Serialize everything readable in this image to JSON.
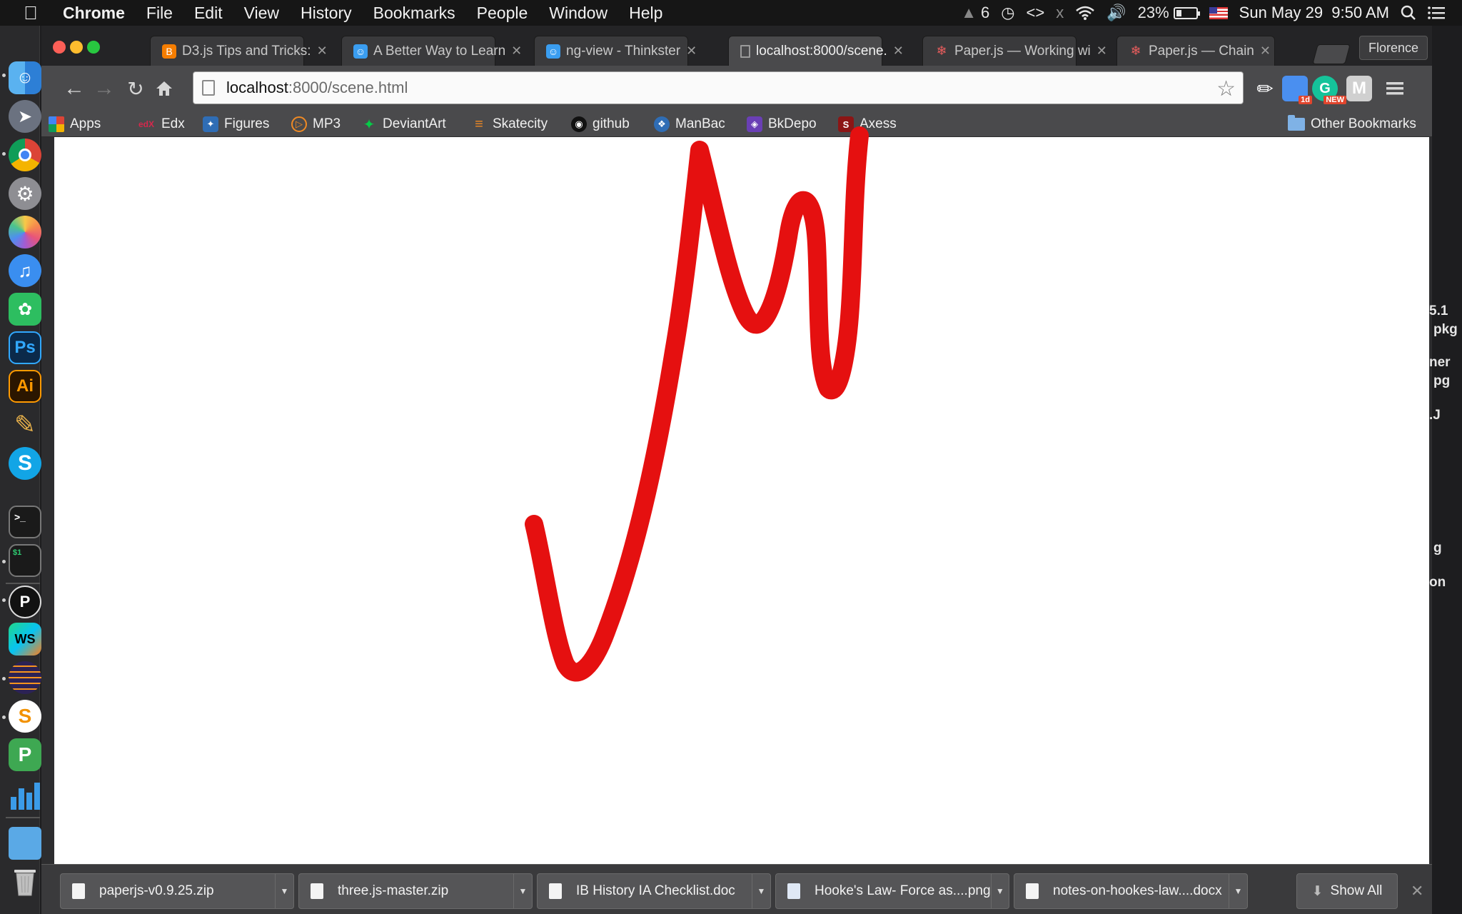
{
  "menubar": {
    "app_name": "Chrome",
    "items": [
      "File",
      "Edit",
      "View",
      "History",
      "Bookmarks",
      "People",
      "Window",
      "Help"
    ],
    "status": {
      "notification_count": "6",
      "battery_percent": "23%",
      "date_time": "Sun May 29  9:50 AM"
    }
  },
  "dock": {
    "icons": [
      "finder-icon",
      "launchpad-icon",
      "chrome-icon",
      "system-preferences-icon",
      "photos-icon",
      "itunes-icon",
      "evernote-icon",
      "photoshop-icon",
      "illustrator-icon",
      "pencil-app-icon",
      "skype-icon",
      "terminal-icon",
      "console-icon",
      "pycharm-icon",
      "webstorm-icon",
      "eclipse-icon",
      "sublime-text-icon",
      "pages-icon",
      "numbers-icon",
      "applications-folder-icon",
      "trash-icon"
    ],
    "labels": {
      "photoshop": "Ps",
      "illustrator": "Ai",
      "skype": "S",
      "webstorm": "WS",
      "sublime": "S",
      "pages": "P"
    }
  },
  "browser": {
    "tabs": [
      {
        "title": "D3.js Tips and Tricks:",
        "icon": "blogger-icon",
        "active": false
      },
      {
        "title": "A Better Way to Learn",
        "icon": "thinkster-icon",
        "active": false
      },
      {
        "title": "ng-view - Thinkster",
        "icon": "thinkster-icon",
        "active": false
      },
      {
        "title": "localhost:8000/scene.",
        "icon": "page-icon",
        "active": true
      },
      {
        "title": "Paper.js — Working wi",
        "icon": "paperjs-icon",
        "active": false
      },
      {
        "title": "Paper.js — Chain",
        "icon": "paperjs-icon",
        "active": false
      }
    ],
    "profile_name": "Florence",
    "address": {
      "host": "localhost",
      "path": ":8000/scene.html"
    },
    "extensions": [
      {
        "icon": "eyedropper-extension-icon",
        "badge": ""
      },
      {
        "icon": "calendar-extension-icon",
        "badge": "1d"
      },
      {
        "icon": "grammarly-extension-icon",
        "badge": "NEW"
      },
      {
        "icon": "m-extension-icon",
        "badge": ""
      },
      {
        "icon": "menu-icon",
        "badge": ""
      }
    ],
    "bookmarks": [
      "Apps",
      "Edx",
      "Figures",
      "MP3",
      "DeviantArt",
      "Skatecity",
      "github",
      "ManBac",
      "BkDepo",
      "Axess"
    ],
    "bookmark_icons": {
      "Edx": "edX"
    },
    "other_bookmarks": "Other Bookmarks",
    "stroke_color": "#e51010"
  },
  "side_peek_text": [
    "5.1",
    "pkg",
    "ner",
    "pg",
    ".J",
    "g",
    "on"
  ],
  "downloads": {
    "items": [
      "paperjs-v0.9.25.zip",
      "three.js-master.zip",
      "IB History IA Checklist.doc",
      "Hooke's Law- Force as....png",
      "notes-on-hookes-law....docx"
    ],
    "show_all": "Show All"
  }
}
